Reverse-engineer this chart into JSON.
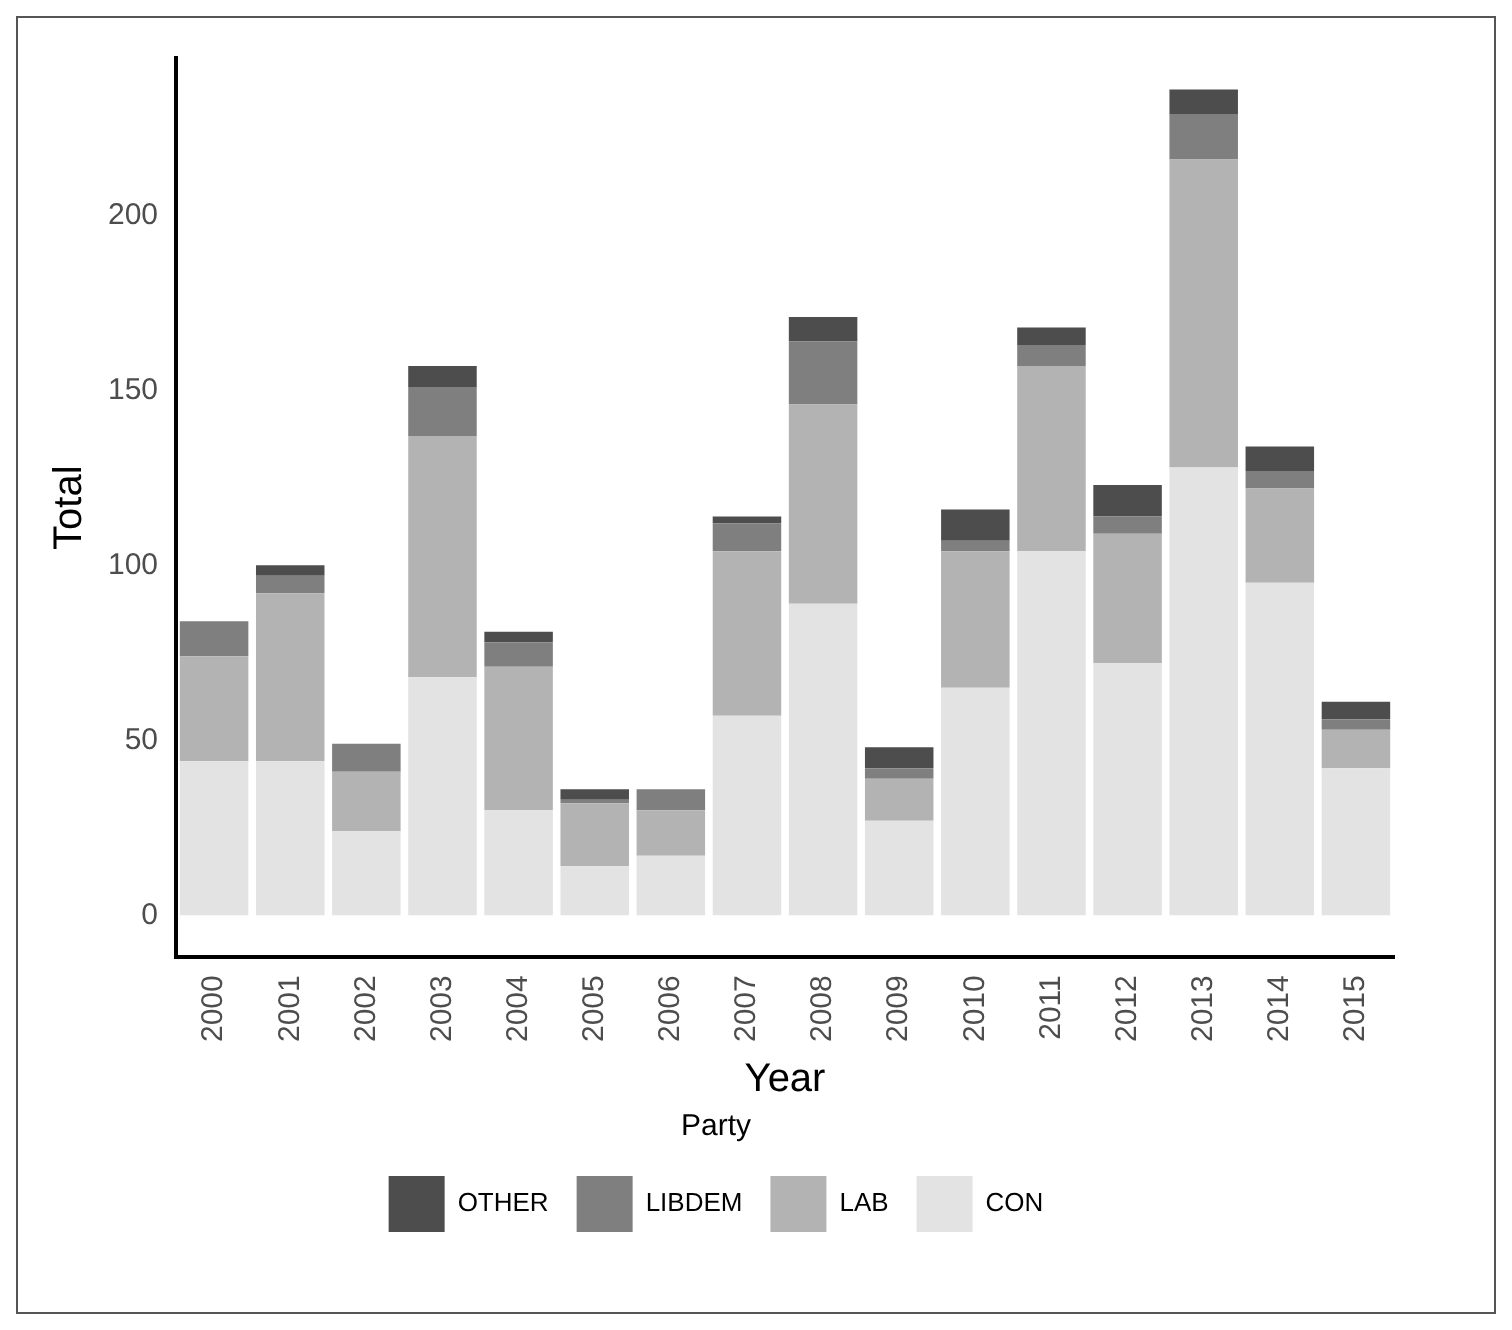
{
  "chart_data": {
    "type": "bar",
    "stacked": true,
    "xlabel": "Year",
    "ylabel": "Total",
    "legend_title": "Party",
    "legend": "bottom",
    "grid": false,
    "categories": [
      "2000",
      "2001",
      "2002",
      "2003",
      "2004",
      "2005",
      "2006",
      "2007",
      "2008",
      "2009",
      "2010",
      "2011",
      "2012",
      "2013",
      "2014",
      "2015"
    ],
    "ylim": [
      -12,
      245
    ],
    "yticks": [
      0,
      50,
      100,
      150,
      200
    ],
    "series": [
      {
        "name": "CON",
        "color": "#e3e3e3",
        "values": [
          44,
          44,
          24,
          68,
          30,
          14,
          17,
          57,
          89,
          27,
          65,
          104,
          72,
          128,
          95,
          42
        ]
      },
      {
        "name": "LAB",
        "color": "#b3b3b3",
        "values": [
          30,
          48,
          17,
          69,
          41,
          18,
          13,
          47,
          57,
          12,
          39,
          53,
          37,
          88,
          27,
          11
        ]
      },
      {
        "name": "LIBDEM",
        "color": "#7f7f7f",
        "values": [
          10,
          5,
          8,
          14,
          7,
          1,
          6,
          8,
          18,
          3,
          3,
          6,
          5,
          13,
          5,
          3
        ]
      },
      {
        "name": "OTHER",
        "color": "#4d4d4d",
        "values": [
          0,
          3,
          0,
          6,
          3,
          3,
          0,
          2,
          7,
          6,
          9,
          5,
          9,
          7,
          7,
          5
        ]
      }
    ]
  }
}
